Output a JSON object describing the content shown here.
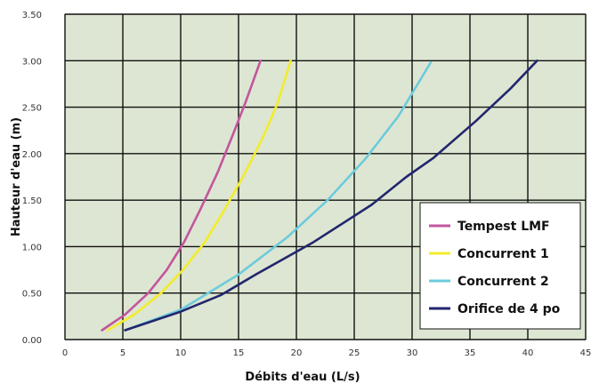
{
  "chart_data": {
    "type": "line",
    "title": "",
    "xlabel": "Débits d'eau (L/s)",
    "ylabel": "Hauteur d'eau (m)",
    "xlim": [
      0,
      45
    ],
    "ylim": [
      0,
      3.5
    ],
    "x_ticks": [
      "0",
      "5",
      "10",
      "15",
      "20",
      "25",
      "30",
      "35",
      "40",
      "45"
    ],
    "y_ticks": [
      "0.00",
      "0.50",
      "1.00",
      "1.50",
      "2.00",
      "2.50",
      "3.00",
      "3.50"
    ],
    "grid": true,
    "plot_background": "#dde6d2",
    "legend_position": "right",
    "series": [
      {
        "name": "Tempest LMF",
        "color": "#c2569e",
        "x": [
          3.2,
          5.2,
          7.2,
          8.8,
          10.3,
          11.7,
          13.2,
          14.5,
          15.6,
          16.9
        ],
        "y": [
          0.1,
          0.27,
          0.5,
          0.75,
          1.05,
          1.4,
          1.8,
          2.2,
          2.55,
          3.0
        ]
      },
      {
        "name": "Concurrent 1",
        "color": "#f3ec2a",
        "x": [
          3.7,
          6.0,
          8.3,
          10.2,
          12.1,
          13.8,
          15.6,
          17.2,
          18.4,
          19.5
        ],
        "y": [
          0.1,
          0.27,
          0.5,
          0.75,
          1.05,
          1.4,
          1.8,
          2.2,
          2.55,
          3.0
        ]
      },
      {
        "name": "Concurrent 2",
        "color": "#6ccbdc",
        "x": [
          5.2,
          10.0,
          15.0,
          19.2,
          22.7,
          26.0,
          28.8,
          31.6
        ],
        "y": [
          0.1,
          0.32,
          0.7,
          1.1,
          1.5,
          1.95,
          2.4,
          2.98
        ]
      },
      {
        "name": "Orifice de 4 po",
        "color": "#22266e",
        "x": [
          5.2,
          10.0,
          13.5,
          16.5,
          21.5,
          26.5,
          29.5,
          31.8,
          35.5,
          38.5,
          40.8
        ],
        "y": [
          0.1,
          0.3,
          0.48,
          0.7,
          1.05,
          1.45,
          1.75,
          1.95,
          2.35,
          2.7,
          3.0
        ]
      }
    ]
  }
}
